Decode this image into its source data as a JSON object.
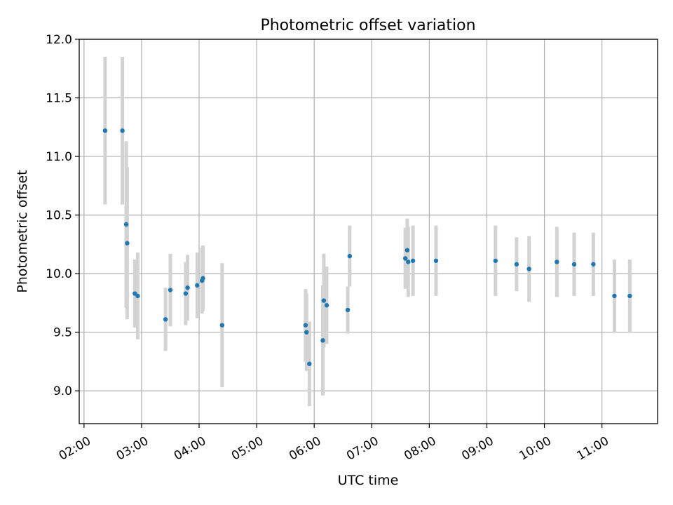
{
  "chart_data": {
    "type": "scatter",
    "title": "Photometric offset variation",
    "xlabel": "UTC time",
    "ylabel": "Photometric offset",
    "xlim": [
      "01:55",
      "11:58"
    ],
    "ylim": [
      8.72,
      12.0
    ],
    "x_ticks": [
      "02:00",
      "03:00",
      "04:00",
      "05:00",
      "06:00",
      "07:00",
      "08:00",
      "09:00",
      "10:00",
      "11:00"
    ],
    "y_ticks": [
      "9.0",
      "9.5",
      "10.0",
      "10.5",
      "11.0",
      "11.5",
      "12.0"
    ],
    "grid": true,
    "colors": {
      "marker": "#1f77b4",
      "errorbar": "#d3d3d3"
    },
    "series": [
      {
        "points": [
          {
            "time": "02:22",
            "y": 11.22,
            "err": 0.63
          },
          {
            "time": "02:40",
            "y": 11.22,
            "err": 0.63
          },
          {
            "time": "02:44",
            "y": 10.42,
            "err": 0.71
          },
          {
            "time": "02:45",
            "y": 10.26,
            "err": 0.65
          },
          {
            "time": "02:53",
            "y": 9.83,
            "err": 0.29
          },
          {
            "time": "02:56",
            "y": 9.81,
            "err": 0.37
          },
          {
            "time": "03:25",
            "y": 9.61,
            "err": 0.27
          },
          {
            "time": "03:30",
            "y": 9.86,
            "err": 0.31
          },
          {
            "time": "03:46",
            "y": 9.83,
            "err": 0.27
          },
          {
            "time": "03:48",
            "y": 9.88,
            "err": 0.28
          },
          {
            "time": "03:58",
            "y": 9.9,
            "err": 0.28
          },
          {
            "time": "04:03",
            "y": 9.94,
            "err": 0.28
          },
          {
            "time": "04:04",
            "y": 9.96,
            "err": 0.28
          },
          {
            "time": "04:24",
            "y": 9.56,
            "err": 0.53
          },
          {
            "time": "05:51",
            "y": 9.56,
            "err": 0.31
          },
          {
            "time": "05:52",
            "y": 9.5,
            "err": 0.33
          },
          {
            "time": "05:55",
            "y": 9.23,
            "err": 0.36
          },
          {
            "time": "06:09",
            "y": 9.43,
            "err": 0.47
          },
          {
            "time": "06:10",
            "y": 9.77,
            "err": 0.4
          },
          {
            "time": "06:13",
            "y": 9.73,
            "err": 0.33
          },
          {
            "time": "06:35",
            "y": 9.69,
            "err": 0.2
          },
          {
            "time": "06:37",
            "y": 10.15,
            "err": 0.26
          },
          {
            "time": "07:35",
            "y": 10.13,
            "err": 0.26
          },
          {
            "time": "07:37",
            "y": 10.2,
            "err": 0.27
          },
          {
            "time": "07:38",
            "y": 10.1,
            "err": 0.3
          },
          {
            "time": "07:43",
            "y": 10.11,
            "err": 0.3
          },
          {
            "time": "08:07",
            "y": 10.11,
            "err": 0.3
          },
          {
            "time": "09:09",
            "y": 10.11,
            "err": 0.3
          },
          {
            "time": "09:31",
            "y": 10.08,
            "err": 0.23
          },
          {
            "time": "09:44",
            "y": 10.04,
            "err": 0.28
          },
          {
            "time": "10:13",
            "y": 10.1,
            "err": 0.3
          },
          {
            "time": "10:31",
            "y": 10.08,
            "err": 0.27
          },
          {
            "time": "10:51",
            "y": 10.08,
            "err": 0.27
          },
          {
            "time": "11:13",
            "y": 9.81,
            "err": 0.31
          },
          {
            "time": "11:29",
            "y": 9.81,
            "err": 0.31
          }
        ]
      }
    ]
  }
}
